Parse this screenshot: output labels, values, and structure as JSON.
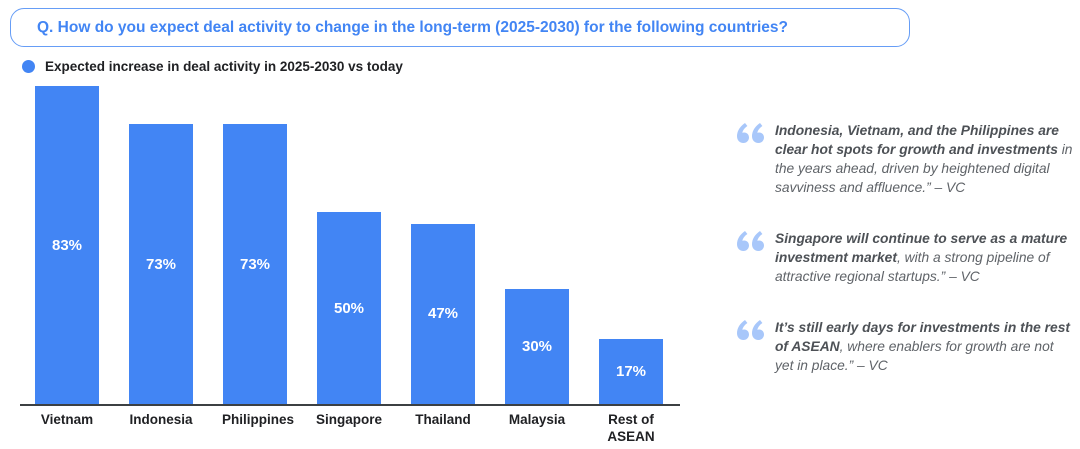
{
  "question": {
    "label": "Q. How do you expect deal activity to change in the long-term (2025-2030) for the following countries?"
  },
  "legend": {
    "label": "Expected increase in deal activity in 2025-2030 vs today",
    "dot_color": "#4285F4"
  },
  "chart_data": {
    "type": "bar",
    "title": "Expected increase in deal activity in 2025-2030 vs today",
    "categories": [
      "Vietnam",
      "Indonesia",
      "Philippines",
      "Singapore",
      "Thailand",
      "Malaysia",
      "Rest of ASEAN"
    ],
    "values": [
      83,
      73,
      73,
      50,
      47,
      30,
      17
    ],
    "value_labels": [
      "83%",
      "73%",
      "73%",
      "50%",
      "47%",
      "30%",
      "17%"
    ],
    "xlabel": "",
    "ylabel": "",
    "ylim": [
      0,
      100
    ],
    "grid": false,
    "legend_position": "top-left",
    "bar_color": "#4285F4",
    "value_label_color": "#FFFFFF",
    "value_label_position": "center-inside"
  },
  "quotes": [
    {
      "icon": "double-quote-icon",
      "bold": "Indonesia, Vietnam, and the Philippines are clear hot spots for growth and investments",
      "rest": " in the years ahead, driven by heightened digital savviness and affluence.” – VC"
    },
    {
      "icon": "double-quote-icon",
      "bold": "Singapore will continue to serve as a mature investment market",
      "rest": ", with a strong pipeline of attractive regional startups.” – VC"
    },
    {
      "icon": "double-quote-icon",
      "bold": "It’s still early days for investments in the rest of ASEAN",
      "rest": ", where enablers for growth are not yet in place.” – VC"
    }
  ],
  "colors": {
    "accent_blue": "#4285F4",
    "question_text": "#4285F4",
    "question_border": "#669DF6",
    "axis_line": "#3C4043",
    "axis_label": "#202124",
    "quote_icon": "#A8C7FA",
    "quote_text": "#5F6368",
    "quote_text_bold": "#4D5156",
    "background": "#FFFFFF"
  }
}
